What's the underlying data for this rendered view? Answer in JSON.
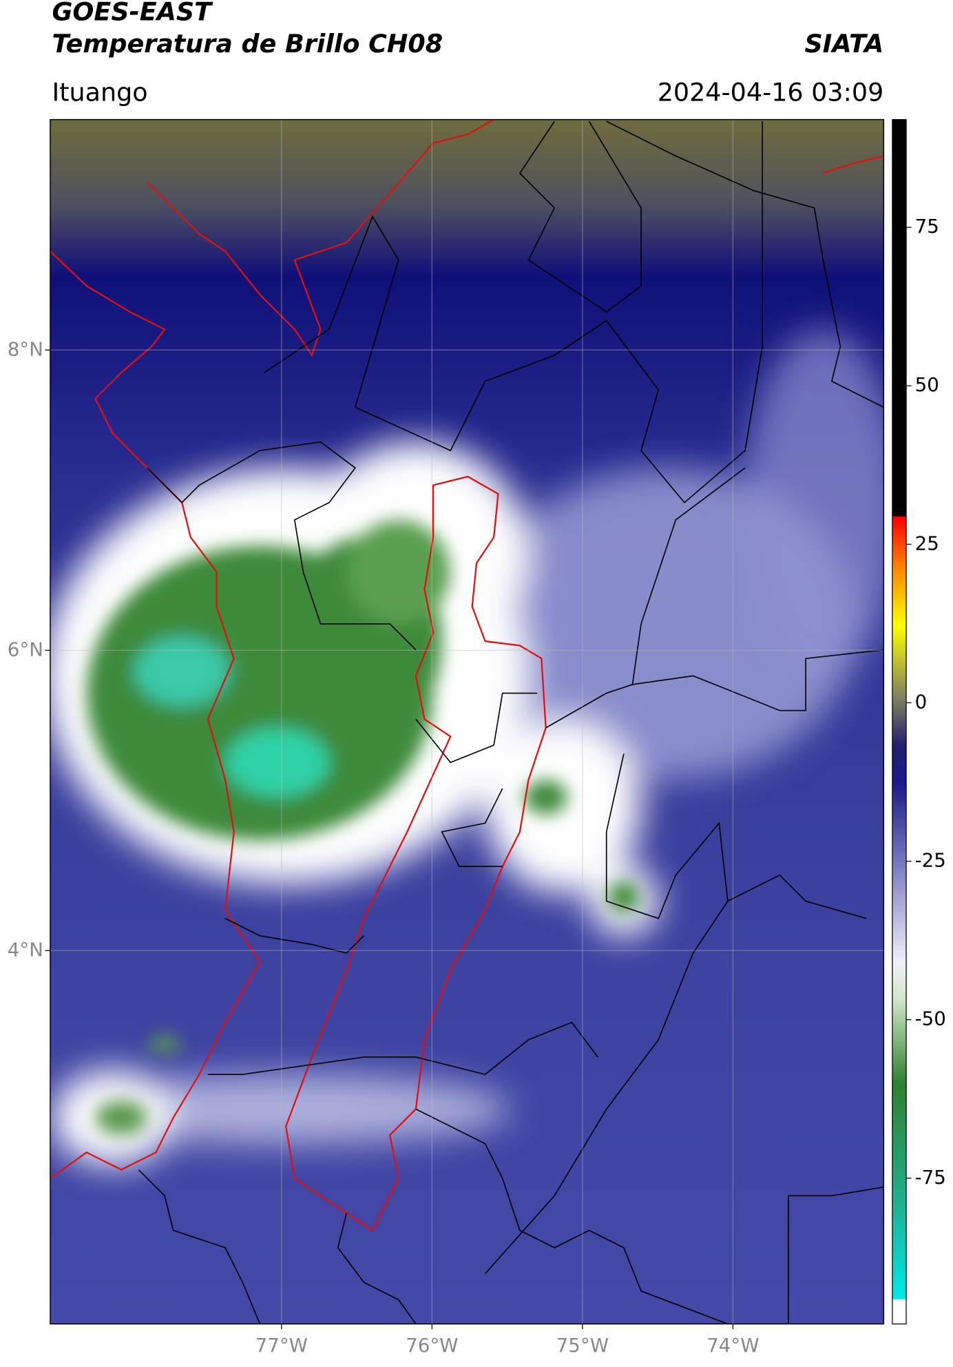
{
  "header": {
    "title": "GOES-EAST",
    "subtitle": "Temperatura de Brillo CH08",
    "source": "SIATA",
    "region": "Ituango",
    "datetime": "2024-04-16 03:09"
  },
  "map": {
    "xlim": [
      -78.537,
      -72.998
    ],
    "ylim": [
      1.513,
      9.535
    ],
    "xticks": [
      {
        "value": -77,
        "label": "77°W"
      },
      {
        "value": -76,
        "label": "76°W"
      },
      {
        "value": -75,
        "label": "75°W"
      },
      {
        "value": -74,
        "label": "74°W"
      }
    ],
    "yticks": [
      {
        "value": 8,
        "label": "8°N"
      },
      {
        "value": 6,
        "label": "6°N"
      },
      {
        "value": 4,
        "label": "4°N"
      }
    ],
    "grid": true
  },
  "colorbar": {
    "lim": [
      -98,
      92
    ],
    "ticks": [
      75,
      50,
      25,
      0,
      -25,
      -50,
      -75
    ]
  }
}
